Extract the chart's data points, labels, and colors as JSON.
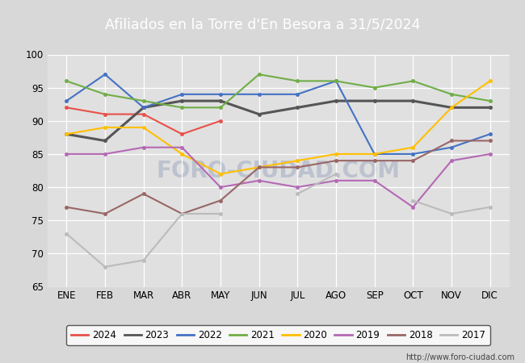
{
  "title": "Afiliados en la Torre d'En Besora a 31/5/2024",
  "bg_color": "#d8d8d8",
  "plot_bg": "#e0e0e0",
  "header_bg": "#4169b0",
  "ylim": [
    65,
    100
  ],
  "yticks": [
    65,
    70,
    75,
    80,
    85,
    90,
    95,
    100
  ],
  "months": [
    "ENE",
    "FEB",
    "MAR",
    "ABR",
    "MAY",
    "JUN",
    "JUL",
    "AGO",
    "SEP",
    "OCT",
    "NOV",
    "DIC"
  ],
  "watermark": "FORO-CIUDAD.COM",
  "url": "http://www.foro-ciudad.com",
  "series": {
    "2024": {
      "color": "#e8514a",
      "linewidth": 1.5,
      "values": [
        92,
        91,
        91,
        88,
        90,
        null,
        null,
        null,
        null,
        null,
        null,
        null
      ]
    },
    "2023": {
      "color": "#555555",
      "linewidth": 2.2,
      "values": [
        88,
        87,
        92,
        93,
        93,
        91,
        92,
        93,
        93,
        93,
        92,
        92
      ]
    },
    "2022": {
      "color": "#4472c4",
      "linewidth": 1.5,
      "values": [
        93,
        97,
        92,
        94,
        94,
        94,
        94,
        96,
        85,
        85,
        86,
        88
      ]
    },
    "2021": {
      "color": "#70ad47",
      "linewidth": 1.5,
      "values": [
        96,
        94,
        93,
        92,
        92,
        97,
        96,
        96,
        95,
        96,
        94,
        93
      ]
    },
    "2020": {
      "color": "#ffc000",
      "linewidth": 1.5,
      "values": [
        88,
        89,
        89,
        85,
        82,
        83,
        84,
        85,
        85,
        86,
        92,
        96
      ]
    },
    "2019": {
      "color": "#b469b4",
      "linewidth": 1.5,
      "values": [
        85,
        85,
        86,
        86,
        80,
        81,
        80,
        81,
        81,
        77,
        84,
        85
      ]
    },
    "2018": {
      "color": "#996666",
      "linewidth": 1.5,
      "values": [
        77,
        76,
        79,
        76,
        78,
        83,
        83,
        84,
        84,
        84,
        87,
        87
      ]
    },
    "2017": {
      "color": "#bbbbbb",
      "linewidth": 1.5,
      "values": [
        73,
        68,
        69,
        76,
        76,
        null,
        79,
        82,
        null,
        78,
        76,
        77
      ]
    }
  },
  "legend_order": [
    "2024",
    "2023",
    "2022",
    "2021",
    "2020",
    "2019",
    "2018",
    "2017"
  ]
}
